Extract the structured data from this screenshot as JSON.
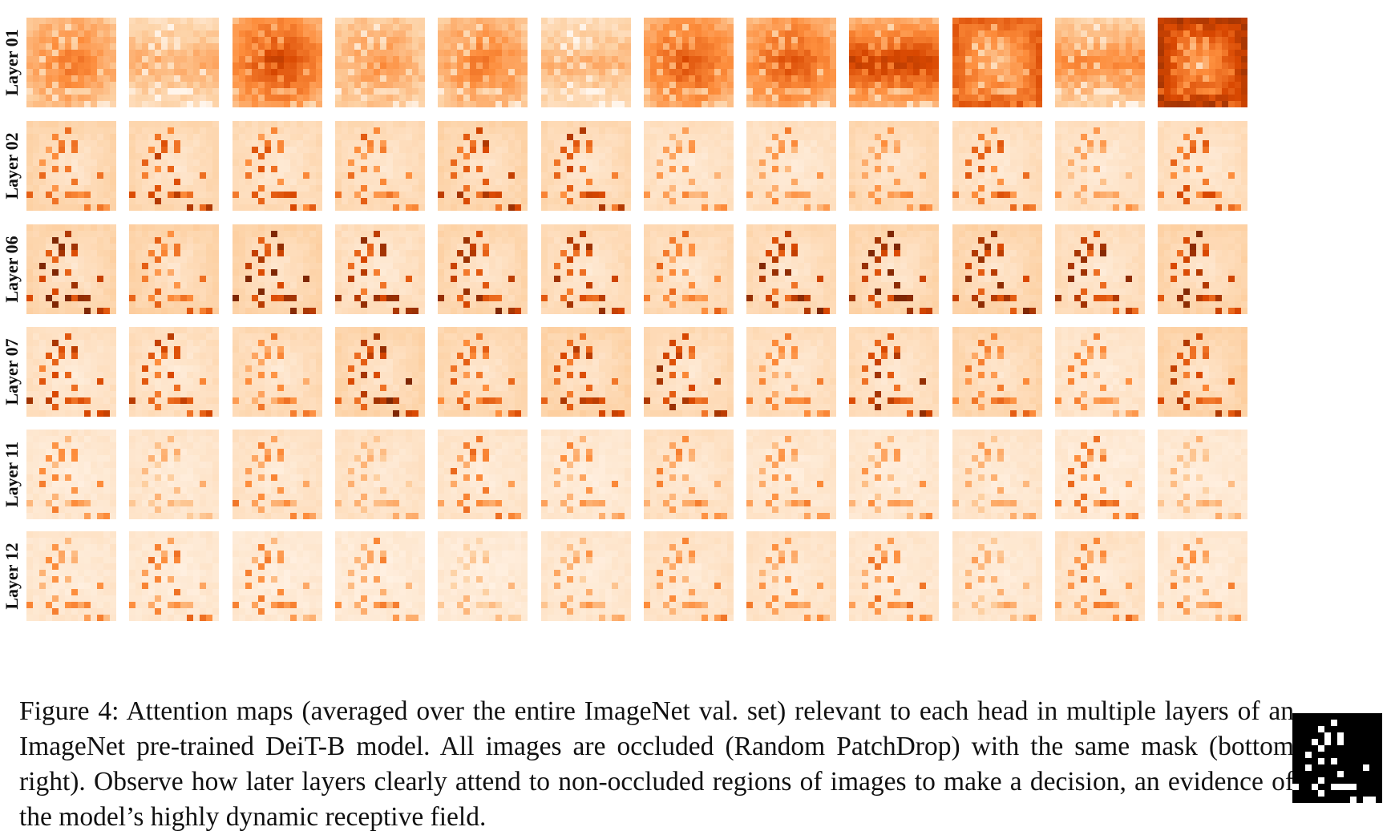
{
  "figure": {
    "row_labels": [
      "Layer 01",
      "Layer 02",
      "Layer 06",
      "Layer 07",
      "Layer 11",
      "Layer 12"
    ],
    "heads_per_row": 12,
    "colormap": [
      "#fff5eb",
      "#fdd0a2",
      "#fd8d3c",
      "#d94801",
      "#7f2704"
    ]
  },
  "caption": "Figure 4: Attention maps (averaged over the entire ImageNet val. set) relevant to each head in multiple layers of an ImageNet pre-trained DeiT-B model. All images are occluded (Random PatchDrop) with the same mask (bottom right). Observe how later layers clearly attend to non-occluded regions of images to make a decision, an evidence of the model’s highly dynamic receptive field."
}
